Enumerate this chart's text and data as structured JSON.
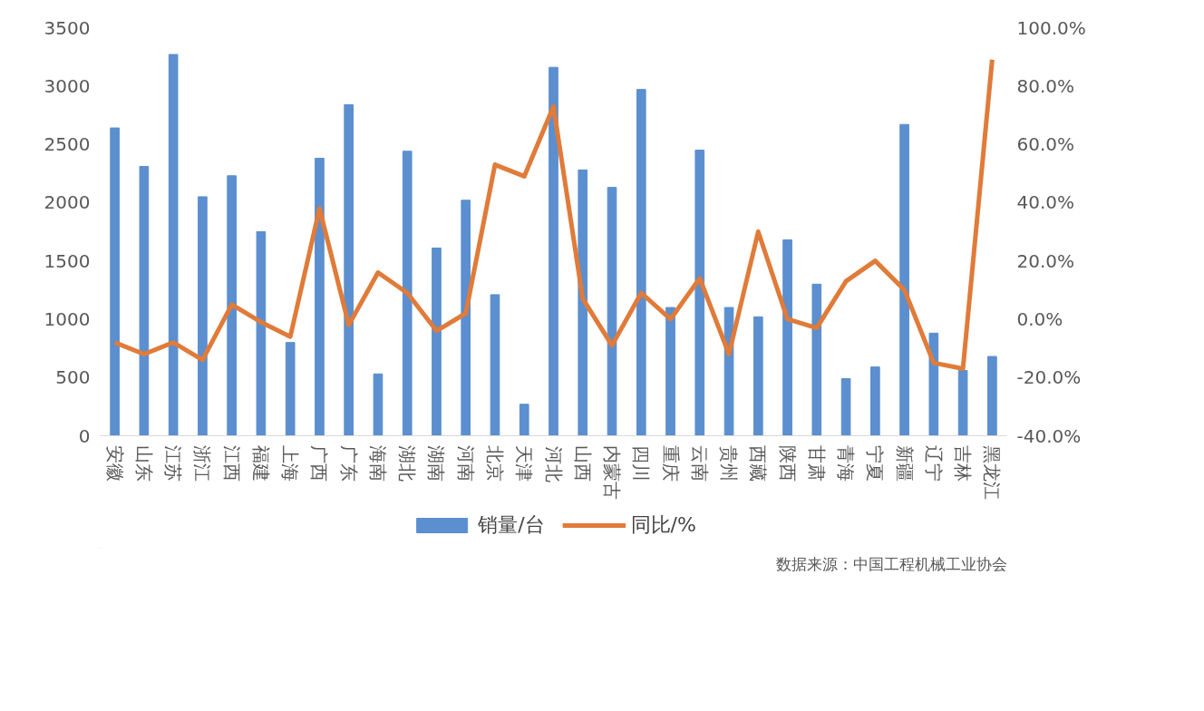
{
  "chart_data": {
    "type": "bar",
    "categories": [
      "安徽",
      "山东",
      "江苏",
      "浙江",
      "江西",
      "福建",
      "上海",
      "广西",
      "广东",
      "海南",
      "湖北",
      "湖南",
      "河南",
      "北京",
      "天津",
      "河北",
      "山西",
      "内蒙古",
      "四川",
      "重庆",
      "云南",
      "贵州",
      "西藏",
      "陕西",
      "甘肃",
      "青海",
      "宁夏",
      "新疆",
      "辽宁",
      "吉林",
      "黑龙江"
    ],
    "series": [
      {
        "name": "销量/台",
        "color": "#5b8fcf",
        "values": [
          2640,
          2310,
          3270,
          2050,
          2230,
          1750,
          800,
          2380,
          2840,
          530,
          2440,
          1610,
          2020,
          1210,
          270,
          3160,
          2280,
          2130,
          2970,
          1100,
          2450,
          1100,
          1020,
          1680,
          1300,
          490,
          590,
          2670,
          880,
          560,
          680
        ]
      },
      {
        "name": "同比/%",
        "type": "line",
        "axis": "y2",
        "color": "#e07b39",
        "values": [
          -8,
          -12,
          -8,
          -14,
          5,
          -1,
          -6,
          38,
          -2,
          16,
          9,
          -4,
          2,
          53,
          49,
          73,
          7,
          -9,
          9,
          0,
          14,
          -12,
          30,
          0,
          -3,
          13,
          20,
          10,
          -15,
          -17,
          89
        ]
      }
    ],
    "ylim": [
      0,
      3500
    ],
    "yticks": [
      0,
      500,
      1000,
      1500,
      2000,
      2500,
      3000,
      3500
    ],
    "y2lim": [
      -40,
      100
    ],
    "y2ticks": [
      {
        "value": -40,
        "label": "-40.0%"
      },
      {
        "value": -20,
        "label": "-20.0%"
      },
      {
        "value": 0,
        "label": "0.0%"
      },
      {
        "value": 20,
        "label": "20.0%"
      },
      {
        "value": 40,
        "label": "40.0%"
      },
      {
        "value": 60,
        "label": "60.0%"
      },
      {
        "value": 80,
        "label": "80.0%"
      },
      {
        "value": 100,
        "label": "100.0%"
      }
    ],
    "grid": false,
    "legend": "bottom",
    "annotations": [
      "数据来源：中国工程机械工业协会"
    ]
  }
}
